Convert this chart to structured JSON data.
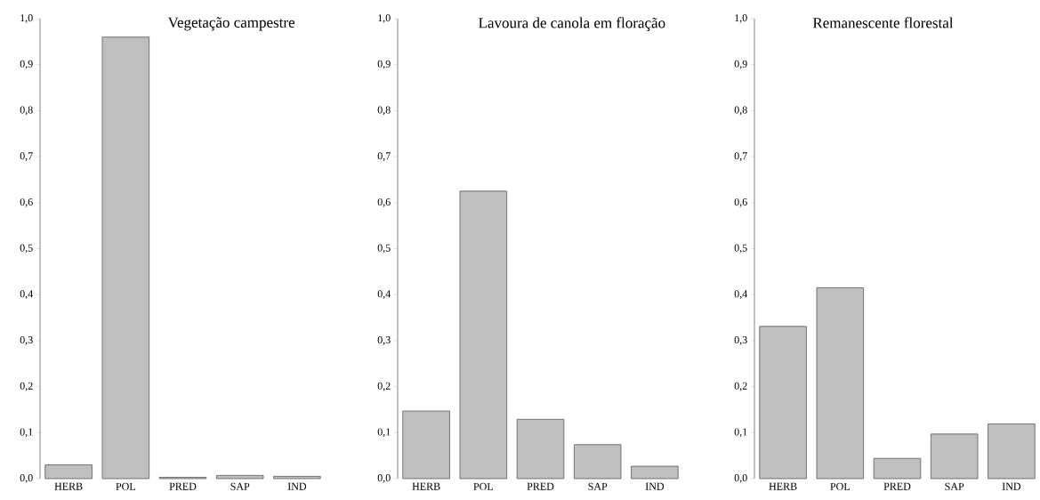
{
  "chart_data": [
    {
      "type": "bar",
      "title": "Vegetação campestre",
      "categories": [
        "HERB",
        "POL",
        "PRED",
        "SAP",
        "IND"
      ],
      "values": [
        0.03,
        0.96,
        0.003,
        0.007,
        0.005
      ],
      "color": "#bfbfbf",
      "ylim": [
        0,
        1
      ],
      "yticks": [
        {
          "value": 0,
          "label": "0,0"
        },
        {
          "value": 0.1,
          "label": "0,1"
        },
        {
          "value": 0.2,
          "label": "0,2"
        },
        {
          "value": 0.3,
          "label": "0,3"
        },
        {
          "value": 0.4,
          "label": "0,4"
        },
        {
          "value": 0.5,
          "label": "0,5"
        },
        {
          "value": 0.6,
          "label": "0,6"
        },
        {
          "value": 0.7,
          "label": "0,7"
        },
        {
          "value": 0.8,
          "label": "0,8"
        },
        {
          "value": 0.9,
          "label": "0,9"
        },
        {
          "value": 1,
          "label": "1,0"
        }
      ]
    },
    {
      "type": "bar",
      "title": "Lavoura de canola em floração",
      "categories": [
        "HERB",
        "POL",
        "PRED",
        "SAP",
        "IND"
      ],
      "values": [
        0.147,
        0.625,
        0.129,
        0.074,
        0.027
      ],
      "color": "#bfbfbf",
      "ylim": [
        0,
        1
      ],
      "yticks": [
        {
          "value": 0,
          "label": "0,0"
        },
        {
          "value": 0.1,
          "label": "0,1"
        },
        {
          "value": 0.2,
          "label": "0,2"
        },
        {
          "value": 0.3,
          "label": "0,3"
        },
        {
          "value": 0.4,
          "label": "0,4"
        },
        {
          "value": 0.5,
          "label": "0,5"
        },
        {
          "value": 0.6,
          "label": "0,6"
        },
        {
          "value": 0.7,
          "label": "0,7"
        },
        {
          "value": 0.8,
          "label": "0,8"
        },
        {
          "value": 0.9,
          "label": "0,9"
        },
        {
          "value": 1,
          "label": "1,0"
        }
      ]
    },
    {
      "type": "bar",
      "title": "Remanescente florestal",
      "categories": [
        "HERB",
        "POL",
        "PRED",
        "SAP",
        "IND"
      ],
      "values": [
        0.331,
        0.415,
        0.044,
        0.097,
        0.119
      ],
      "color": "#bfbfbf",
      "ylim": [
        0,
        1
      ],
      "yticks": [
        {
          "value": 0,
          "label": "0,0"
        },
        {
          "value": 0.1,
          "label": "0,1"
        },
        {
          "value": 0.2,
          "label": "0,2"
        },
        {
          "value": 0.3,
          "label": "0,3"
        },
        {
          "value": 0.4,
          "label": "0,4"
        },
        {
          "value": 0.5,
          "label": "0,5"
        },
        {
          "value": 0.6,
          "label": "0,6"
        },
        {
          "value": 0.7,
          "label": "0,7"
        },
        {
          "value": 0.8,
          "label": "0,8"
        },
        {
          "value": 0.9,
          "label": "0,9"
        },
        {
          "value": 1,
          "label": "1,0"
        }
      ]
    }
  ]
}
